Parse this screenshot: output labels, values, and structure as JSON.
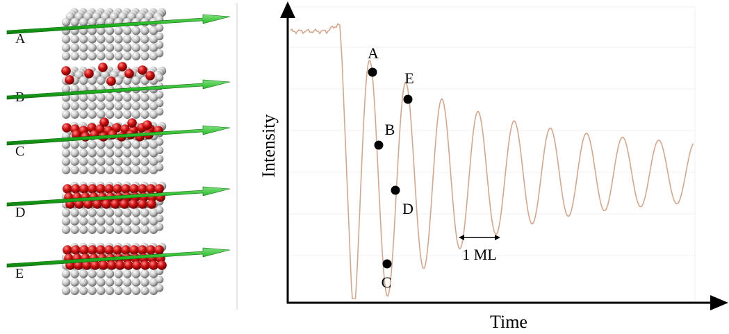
{
  "stages": [
    {
      "label": "A",
      "coverage": "bare-substrate"
    },
    {
      "label": "B",
      "coverage": "sparse-adatoms"
    },
    {
      "label": "C",
      "coverage": "half-layer-rough"
    },
    {
      "label": "D",
      "coverage": "nearly-complete-layer"
    },
    {
      "label": "E",
      "coverage": "complete-layer"
    }
  ],
  "chart": {
    "xlabel": "Time",
    "ylabel": "Intensity",
    "scale_bar_label": "1 ML",
    "points": [
      {
        "label": "A"
      },
      {
        "label": "B"
      },
      {
        "label": "C"
      },
      {
        "label": "D"
      },
      {
        "label": "E"
      }
    ]
  },
  "colors": {
    "substrate_atom": "#c8c8c8",
    "adatom": "#d01010",
    "beam": "#22b822",
    "curve": "#d9a58a",
    "axis": "#000000"
  }
}
